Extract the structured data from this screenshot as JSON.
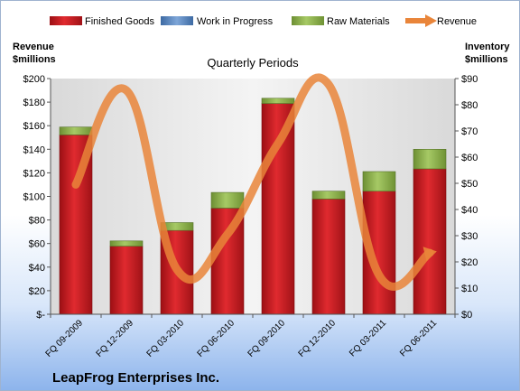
{
  "chart_data": {
    "type": "bar",
    "stacked": true,
    "title": "Quarterly Periods",
    "company": "LeapFrog Enterprises Inc.",
    "categories": [
      "FQ 09-2009",
      "FQ 12-2009",
      "FQ 03-2010",
      "FQ 06-2010",
      "FQ 09-2010",
      "FQ 12-2010",
      "FQ 03-2011",
      "FQ 06-2011"
    ],
    "left_axis": {
      "label_line1": "Revenue",
      "label_line2": "$millions",
      "ylim": [
        0,
        200
      ],
      "ticks": [
        0,
        20,
        40,
        60,
        80,
        100,
        120,
        140,
        160,
        180,
        200
      ],
      "tick_labels": [
        "$-",
        "$20",
        "$40",
        "$60",
        "$80",
        "$100",
        "$120",
        "$140",
        "$160",
        "$180",
        "$200"
      ]
    },
    "right_axis": {
      "label_line1": "Inventory",
      "label_line2": "$millions",
      "ylim": [
        0,
        90
      ],
      "ticks": [
        0,
        10,
        20,
        30,
        40,
        50,
        60,
        70,
        80,
        90
      ],
      "tick_labels": [
        "$0",
        "$10",
        "$20",
        "$30",
        "$40",
        "$50",
        "$60",
        "$70",
        "$80",
        "$90"
      ]
    },
    "series": [
      {
        "name": "Finished Goods",
        "axis": "right",
        "kind": "bar",
        "color": "#c0161d",
        "values": [
          68.5,
          26,
          32,
          40.5,
          80.5,
          44,
          47,
          55.5
        ]
      },
      {
        "name": "Work in Progress",
        "axis": "right",
        "kind": "bar",
        "color": "#4f81bd",
        "values": [
          0,
          0,
          0,
          0,
          0,
          0,
          0,
          0
        ]
      },
      {
        "name": "Raw Materials",
        "axis": "right",
        "kind": "bar",
        "color": "#8db04a",
        "values": [
          3,
          2,
          3,
          6,
          2,
          3,
          7.5,
          7.5
        ]
      },
      {
        "name": "Revenue",
        "axis": "left",
        "kind": "line",
        "color": "#e9853a",
        "values": [
          110,
          190,
          38,
          68,
          145,
          195,
          33,
          52
        ]
      }
    ],
    "legend_position": "top",
    "grid": false
  }
}
